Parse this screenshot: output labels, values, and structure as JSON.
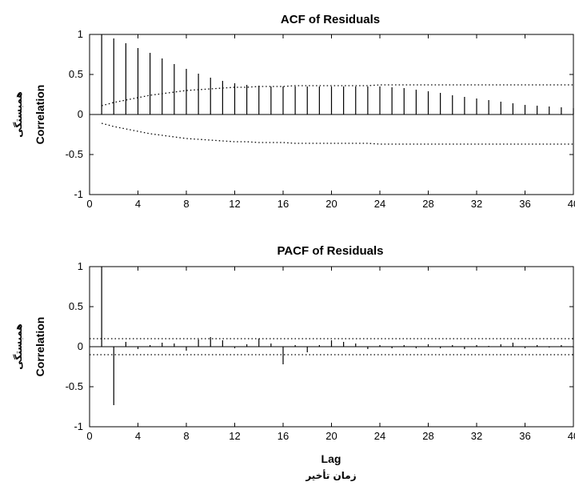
{
  "chart_data": [
    {
      "type": "bar",
      "title": "ACF of Residuals",
      "ylabel": "Correlation",
      "ylabel_secondary": "همبستگی",
      "xlabel": "",
      "xlim": [
        0,
        40
      ],
      "ylim": [
        -1,
        1
      ],
      "xticks": [
        "0",
        "4",
        "8",
        "12",
        "16",
        "20",
        "24",
        "28",
        "32",
        "36",
        "40"
      ],
      "yticks": [
        "1",
        "0.5",
        "0",
        "-0.5",
        "-1"
      ],
      "lags": [
        1,
        2,
        3,
        4,
        5,
        6,
        7,
        8,
        9,
        10,
        11,
        12,
        13,
        14,
        15,
        16,
        17,
        18,
        19,
        20,
        21,
        22,
        23,
        24,
        25,
        26,
        27,
        28,
        29,
        30,
        31,
        32,
        33,
        34,
        35,
        36,
        37,
        38,
        39,
        40
      ],
      "values": [
        1.0,
        0.95,
        0.89,
        0.83,
        0.77,
        0.7,
        0.63,
        0.57,
        0.51,
        0.46,
        0.42,
        0.39,
        0.37,
        0.36,
        0.35,
        0.35,
        0.35,
        0.35,
        0.35,
        0.35,
        0.35,
        0.35,
        0.35,
        0.35,
        0.34,
        0.33,
        0.31,
        0.29,
        0.27,
        0.24,
        0.22,
        0.2,
        0.18,
        0.16,
        0.14,
        0.12,
        0.11,
        0.1,
        0.09,
        0.08
      ],
      "confidence_upper": [
        0.11,
        0.15,
        0.18,
        0.21,
        0.24,
        0.26,
        0.28,
        0.3,
        0.31,
        0.32,
        0.33,
        0.34,
        0.34,
        0.35,
        0.35,
        0.35,
        0.36,
        0.36,
        0.36,
        0.36,
        0.36,
        0.36,
        0.36,
        0.37,
        0.37,
        0.37,
        0.37,
        0.37,
        0.37,
        0.37,
        0.37,
        0.37,
        0.37,
        0.37,
        0.37,
        0.37,
        0.37,
        0.37,
        0.37,
        0.37
      ],
      "grid": false
    },
    {
      "type": "bar",
      "title": "PACF of Residuals",
      "ylabel": "Correlation",
      "ylabel_secondary": "همبستگی",
      "xlabel": "Lag",
      "xlabel_secondary": "زمان تأخیر",
      "xlim": [
        0,
        40
      ],
      "ylim": [
        -1,
        1
      ],
      "xticks": [
        "0",
        "4",
        "8",
        "12",
        "16",
        "20",
        "24",
        "28",
        "32",
        "36",
        "40"
      ],
      "yticks": [
        "1",
        "0.5",
        "0",
        "-0.5",
        "-1"
      ],
      "lags": [
        1,
        2,
        3,
        4,
        5,
        6,
        7,
        8,
        9,
        10,
        11,
        12,
        13,
        14,
        15,
        16,
        17,
        18,
        19,
        20,
        21,
        22,
        23,
        24,
        25,
        26,
        27,
        28,
        29,
        30,
        31,
        32,
        33,
        34,
        35,
        36,
        37,
        38,
        39,
        40
      ],
      "values": [
        1.0,
        -0.73,
        0.06,
        -0.03,
        0.02,
        0.05,
        0.04,
        -0.05,
        0.09,
        0.12,
        0.08,
        -0.02,
        0.03,
        0.1,
        0.04,
        -0.22,
        0.02,
        -0.07,
        0.02,
        0.08,
        0.06,
        0.04,
        -0.03,
        0.02,
        -0.02,
        0.02,
        -0.02,
        0.03,
        -0.02,
        0.02,
        -0.03,
        0.02,
        0.01,
        0.03,
        0.05,
        -0.02,
        0.02,
        -0.01,
        0.02,
        -0.01
      ],
      "confidence_bound": 0.1,
      "grid": false
    }
  ]
}
